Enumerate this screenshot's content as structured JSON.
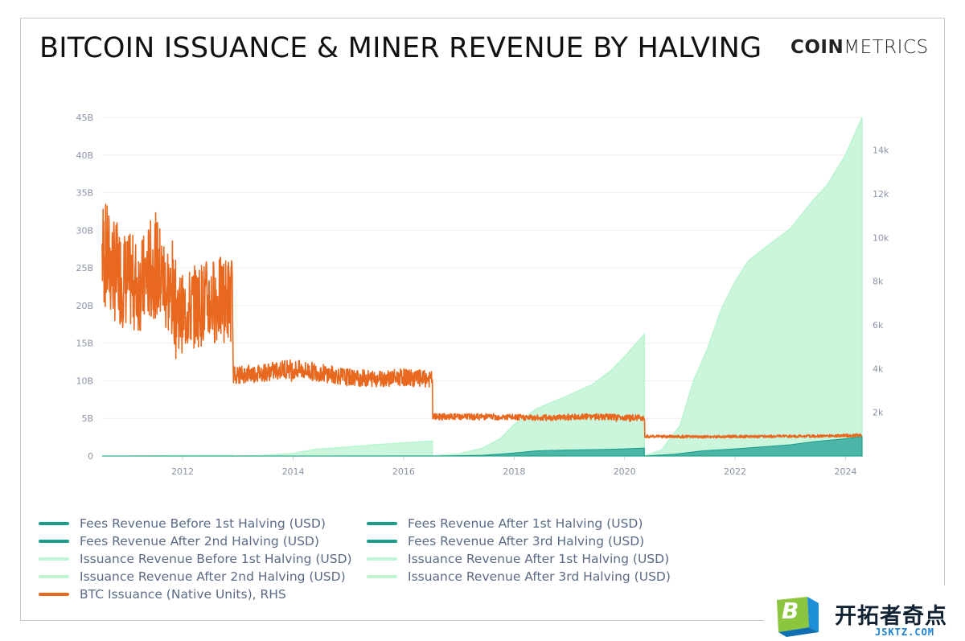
{
  "header": {
    "title": "BITCOIN ISSUANCE & MINER REVENUE BY HALVING",
    "logo_bold": "COIN",
    "logo_light": "METRICS"
  },
  "colors": {
    "fees": "#1a9e8b",
    "fees_fill": "#2aa59a",
    "issuance_line": "#b8f5cf",
    "issuance_fill": "#c2f5d6",
    "btc": "#e8681f",
    "grid": "#eeeeee",
    "tick": "#8a93a6"
  },
  "chart_data": {
    "type": "area",
    "title": "BITCOIN ISSUANCE & MINER REVENUE BY HALVING",
    "x_axis": {
      "type": "date",
      "range": [
        "2010-07-18",
        "2024-04-19"
      ],
      "ticks": [
        "2012",
        "2014",
        "2016",
        "2018",
        "2020",
        "2022",
        "2024"
      ]
    },
    "y_axis_left": {
      "range": [
        0,
        45000000000
      ],
      "ticks": [
        "0",
        "5B",
        "10B",
        "15B",
        "20B",
        "25B",
        "30B",
        "35B",
        "40B",
        "45B"
      ]
    },
    "y_axis_right": {
      "range": [
        0,
        15500
      ],
      "ticks": [
        "2k",
        "4k",
        "6k",
        "8k",
        "10k",
        "12k",
        "14k"
      ]
    },
    "halvings": [
      "2012-11-28",
      "2016-07-09",
      "2020-05-11"
    ],
    "grid": true,
    "legend_position": "bottom",
    "series": [
      {
        "name": "Fees Revenue Before 1st Halving (USD)",
        "axis": "left",
        "points": [
          [
            "2010-07-18",
            0
          ],
          [
            "2012-11-28",
            1000000
          ]
        ]
      },
      {
        "name": "Fees Revenue After 1st Halving (USD)",
        "axis": "left",
        "points": [
          [
            "2012-11-28",
            0
          ],
          [
            "2014-01-01",
            2000000
          ],
          [
            "2016-07-09",
            15000000
          ]
        ]
      },
      {
        "name": "Fees Revenue After 2nd Halving (USD)",
        "axis": "left",
        "points": [
          [
            "2016-07-09",
            0
          ],
          [
            "2017-06-01",
            100000000
          ],
          [
            "2017-12-31",
            400000000
          ],
          [
            "2018-06-01",
            700000000
          ],
          [
            "2019-01-01",
            800000000
          ],
          [
            "2019-07-01",
            850000000
          ],
          [
            "2020-01-01",
            950000000
          ],
          [
            "2020-05-11",
            1050000000
          ]
        ]
      },
      {
        "name": "Fees Revenue After 3rd Halving (USD)",
        "axis": "left",
        "points": [
          [
            "2020-05-11",
            0
          ],
          [
            "2020-12-01",
            250000000
          ],
          [
            "2021-06-01",
            700000000
          ],
          [
            "2022-01-01",
            950000000
          ],
          [
            "2023-01-01",
            1500000000
          ],
          [
            "2023-06-01",
            1900000000
          ],
          [
            "2024-01-01",
            2300000000
          ],
          [
            "2024-04-19",
            2600000000
          ]
        ]
      },
      {
        "name": "Issuance Revenue Before 1st Halving (USD)",
        "axis": "left",
        "points": [
          [
            "2010-07-18",
            0
          ],
          [
            "2011-01-01",
            1000000
          ],
          [
            "2011-06-01",
            30000000
          ],
          [
            "2012-01-01",
            60000000
          ],
          [
            "2012-11-28",
            80000000
          ]
        ]
      },
      {
        "name": "Issuance Revenue After 1st Halving (USD)",
        "axis": "left",
        "points": [
          [
            "2012-11-28",
            0
          ],
          [
            "2013-06-01",
            50000000
          ],
          [
            "2014-01-01",
            350000000
          ],
          [
            "2014-06-01",
            900000000
          ],
          [
            "2015-01-01",
            1200000000
          ],
          [
            "2015-06-01",
            1450000000
          ],
          [
            "2016-01-01",
            1750000000
          ],
          [
            "2016-07-09",
            2000000000
          ]
        ]
      },
      {
        "name": "Issuance Revenue After 2nd Halving (USD)",
        "axis": "left",
        "points": [
          [
            "2016-07-09",
            0
          ],
          [
            "2017-01-01",
            300000000
          ],
          [
            "2017-06-01",
            1000000000
          ],
          [
            "2017-10-01",
            2300000000
          ],
          [
            "2018-01-01",
            4200000000
          ],
          [
            "2018-06-01",
            6300000000
          ],
          [
            "2019-01-01",
            8100000000
          ],
          [
            "2019-06-01",
            9500000000
          ],
          [
            "2019-10-01",
            11300000000
          ],
          [
            "2020-01-01",
            13200000000
          ],
          [
            "2020-05-11",
            16200000000
          ]
        ]
      },
      {
        "name": "Issuance Revenue After 3rd Halving (USD)",
        "axis": "left",
        "points": [
          [
            "2020-05-11",
            0
          ],
          [
            "2020-09-01",
            800000000
          ],
          [
            "2021-01-01",
            4000000000
          ],
          [
            "2021-04-01",
            10000000000
          ],
          [
            "2021-07-01",
            14200000000
          ],
          [
            "2021-10-01",
            19500000000
          ],
          [
            "2022-01-01",
            23200000000
          ],
          [
            "2022-04-01",
            26000000000
          ],
          [
            "2022-08-01",
            27900000000
          ],
          [
            "2023-01-01",
            30200000000
          ],
          [
            "2023-06-01",
            34000000000
          ],
          [
            "2023-09-01",
            36000000000
          ],
          [
            "2024-01-01",
            40000000000
          ],
          [
            "2024-04-19",
            45000000000
          ]
        ]
      },
      {
        "name": "BTC Issuance (Native Units), RHS",
        "axis": "right",
        "points": [
          [
            "2010-07-18",
            9400
          ],
          [
            "2010-10-01",
            8500
          ],
          [
            "2011-01-01",
            8000
          ],
          [
            "2011-04-01",
            7800
          ],
          [
            "2011-07-01",
            8800
          ],
          [
            "2011-10-01",
            7500
          ],
          [
            "2012-01-01",
            6500
          ],
          [
            "2012-04-01",
            6900
          ],
          [
            "2012-07-01",
            7100
          ],
          [
            "2012-11-28",
            7200
          ],
          [
            "2012-11-29",
            3700
          ],
          [
            "2013-06-01",
            3800
          ],
          [
            "2013-12-01",
            4000
          ],
          [
            "2014-06-01",
            3850
          ],
          [
            "2015-01-01",
            3600
          ],
          [
            "2015-06-01",
            3550
          ],
          [
            "2016-01-01",
            3600
          ],
          [
            "2016-07-09",
            3500
          ],
          [
            "2016-07-10",
            1800
          ],
          [
            "2017-06-01",
            1800
          ],
          [
            "2018-06-01",
            1750
          ],
          [
            "2019-06-01",
            1800
          ],
          [
            "2020-05-11",
            1750
          ],
          [
            "2020-05-12",
            900
          ],
          [
            "2021-06-01",
            880
          ],
          [
            "2022-06-01",
            900
          ],
          [
            "2023-06-01",
            910
          ],
          [
            "2024-04-19",
            950
          ]
        ]
      }
    ]
  },
  "legend": [
    {
      "label": "Fees Revenue Before 1st Halving (USD)",
      "color": "#1a9e8b"
    },
    {
      "label": "Fees Revenue After 1st Halving (USD)",
      "color": "#1a9e8b"
    },
    {
      "label": "Fees Revenue After 2nd Halving (USD)",
      "color": "#1a9e8b"
    },
    {
      "label": "Fees Revenue After 3rd Halving (USD)",
      "color": "#1a9e8b"
    },
    {
      "label": "Issuance Revenue Before 1st Halving (USD)",
      "color": "#bff5d2"
    },
    {
      "label": "Issuance Revenue After 1st Halving (USD)",
      "color": "#bff5d2"
    },
    {
      "label": "Issuance Revenue After 2nd Halving (USD)",
      "color": "#bff5d2"
    },
    {
      "label": "Issuance Revenue After 3rd Halving (USD)",
      "color": "#bff5d2"
    },
    {
      "label": "BTC Issuance (Native Units), RHS",
      "color": "#e8681f"
    }
  ],
  "watermark": {
    "cn_text": "开拓者奇点",
    "url": "JSKTZ.COM",
    "letter": "B"
  }
}
